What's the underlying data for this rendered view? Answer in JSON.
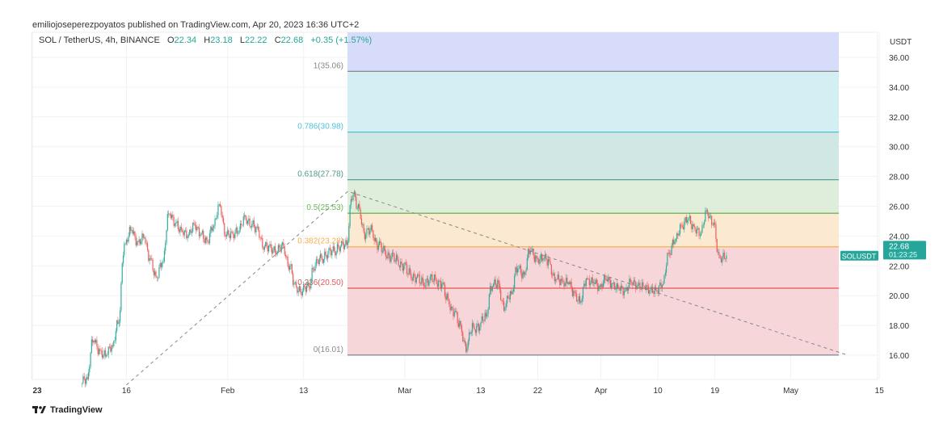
{
  "header": {
    "published": "emiliojoseperezpoyatos published on TradingView.com, Apr 20, 2023 16:36 UTC+2"
  },
  "legend": {
    "symbol": "SOL / TetherUS, 4h, BINANCE",
    "o_label": "O",
    "o": "22.34",
    "h_label": "H",
    "h": "23.18",
    "l_label": "L",
    "l": "22.22",
    "c_label": "C",
    "c": "22.68",
    "change": "+0.35 (+1.57%)"
  },
  "footer": {
    "brand": "TradingView",
    "logo_icon": "tradingview-logo-icon"
  },
  "chart_data": {
    "type": "candlestick",
    "symbol": "SOLUSDT",
    "interval": "4h",
    "currency_label": "USDT",
    "ylim": [
      14,
      38
    ],
    "y_ticks": [
      "16.00",
      "18.00",
      "20.00",
      "22.00",
      "24.00",
      "26.00",
      "28.00",
      "30.00",
      "32.00",
      "34.00",
      "36.00"
    ],
    "x_ticks": [
      {
        "label": "23",
        "date": "2023-01-01",
        "bold": true
      },
      {
        "label": "16",
        "date": "2023-01-16"
      },
      {
        "label": "Feb",
        "date": "2023-02-01"
      },
      {
        "label": "13",
        "date": "2023-02-13"
      },
      {
        "label": "Mar",
        "date": "2023-03-01"
      },
      {
        "label": "13",
        "date": "2023-03-13"
      },
      {
        "label": "22",
        "date": "2023-03-22"
      },
      {
        "label": "Apr",
        "date": "2023-04-01"
      },
      {
        "label": "10",
        "date": "2023-04-10"
      },
      {
        "label": "19",
        "date": "2023-04-19"
      },
      {
        "label": "May",
        "date": "2023-05-01"
      },
      {
        "label": "15",
        "date": "2023-05-15"
      }
    ],
    "last_price": {
      "symbol_label": "SOLUSDT",
      "price": "22.68",
      "countdown": "01:23:25",
      "color": "#26a69a"
    },
    "colors": {
      "up": "#26a69a",
      "down": "#ef5350"
    },
    "grid": true,
    "dates": [
      "2023-01-09",
      "2023-01-10",
      "2023-01-11",
      "2023-01-12",
      "2023-01-13",
      "2023-01-14",
      "2023-01-15",
      "2023-01-16",
      "2023-01-17",
      "2023-01-18",
      "2023-01-19",
      "2023-01-20",
      "2023-01-21",
      "2023-01-22",
      "2023-01-23",
      "2023-01-24",
      "2023-01-25",
      "2023-01-26",
      "2023-01-27",
      "2023-01-28",
      "2023-01-29",
      "2023-01-30",
      "2023-01-31",
      "2023-02-01",
      "2023-02-02",
      "2023-02-03",
      "2023-02-04",
      "2023-02-05",
      "2023-02-06",
      "2023-02-07",
      "2023-02-08",
      "2023-02-09",
      "2023-02-10",
      "2023-02-11",
      "2023-02-12",
      "2023-02-13",
      "2023-02-14",
      "2023-02-15",
      "2023-02-16",
      "2023-02-17",
      "2023-02-18",
      "2023-02-19",
      "2023-02-20",
      "2023-02-21",
      "2023-02-22",
      "2023-02-23",
      "2023-02-24",
      "2023-02-25",
      "2023-02-26",
      "2023-02-27",
      "2023-02-28",
      "2023-03-01",
      "2023-03-02",
      "2023-03-03",
      "2023-03-04",
      "2023-03-05",
      "2023-03-06",
      "2023-03-07",
      "2023-03-08",
      "2023-03-09",
      "2023-03-10",
      "2023-03-11",
      "2023-03-12",
      "2023-03-13",
      "2023-03-14",
      "2023-03-15",
      "2023-03-16",
      "2023-03-17",
      "2023-03-18",
      "2023-03-19",
      "2023-03-20",
      "2023-03-21",
      "2023-03-22",
      "2023-03-23",
      "2023-03-24",
      "2023-03-25",
      "2023-03-26",
      "2023-03-27",
      "2023-03-28",
      "2023-03-29",
      "2023-03-30",
      "2023-03-31",
      "2023-04-01",
      "2023-04-02",
      "2023-04-03",
      "2023-04-04",
      "2023-04-05",
      "2023-04-06",
      "2023-04-07",
      "2023-04-08",
      "2023-04-09",
      "2023-04-10",
      "2023-04-11",
      "2023-04-12",
      "2023-04-13",
      "2023-04-14",
      "2023-04-15",
      "2023-04-16",
      "2023-04-17",
      "2023-04-18",
      "2023-04-19",
      "2023-04-20"
    ],
    "close": [
      14.4,
      17.0,
      16.3,
      16.0,
      16.6,
      18.2,
      23.5,
      24.4,
      23.6,
      23.9,
      22.5,
      21.2,
      22.3,
      25.5,
      24.9,
      24.3,
      24.1,
      24.7,
      24.2,
      23.6,
      24.7,
      26.0,
      24.1,
      24.1,
      24.4,
      25.2,
      24.8,
      24.4,
      23.3,
      23.2,
      23.0,
      23.3,
      22.0,
      20.6,
      20.3,
      20.6,
      22.0,
      22.5,
      22.8,
      23.0,
      23.3,
      23.4,
      26.8,
      25.8,
      24.1,
      24.4,
      23.4,
      23.0,
      22.6,
      22.4,
      22.0,
      21.5,
      21.2,
      20.9,
      21.0,
      21.1,
      20.8,
      19.8,
      18.9,
      18.0,
      16.5,
      17.9,
      17.9,
      18.6,
      20.6,
      20.8,
      19.2,
      20.1,
      21.8,
      21.4,
      23.0,
      22.5,
      22.5,
      22.3,
      21.1,
      21.0,
      20.9,
      20.2,
      19.6,
      21.1,
      20.9,
      20.6,
      21.1,
      20.8,
      20.5,
      20.3,
      20.9,
      20.7,
      20.6,
      20.4,
      20.3,
      20.8,
      22.8,
      23.8,
      24.6,
      25.2,
      24.5,
      24.2,
      25.6,
      24.9,
      22.5,
      22.68
    ],
    "fibonacci": {
      "start_date": "2023-02-20",
      "end_date": "2023-05-10",
      "trend_points": [
        {
          "date": "2023-01-16",
          "price": 14.0
        },
        {
          "date": "2023-02-20",
          "price": 27.0
        },
        {
          "date": "2023-05-10",
          "price": 16.0
        }
      ],
      "levels": [
        {
          "label": "1(35.06)",
          "price": 35.06,
          "line": "#8a8a8a",
          "fill": "#e2e3e5",
          "text": "#888888"
        },
        {
          "label": "0.786(30.98)",
          "price": 30.98,
          "line": "#4ec0d8",
          "fill": "#d3eff4",
          "text": "#4ec0d8"
        },
        {
          "label": "0.618(27.78)",
          "price": 27.78,
          "line": "#5a9e90",
          "fill": "#d1e7e3",
          "text": "#4f9a8a"
        },
        {
          "label": "0.5(25.53)",
          "price": 25.53,
          "line": "#6cb85a",
          "fill": "#dfeedb",
          "text": "#6cb85a"
        },
        {
          "label": "0.382(23.28)",
          "price": 23.28,
          "line": "#f3b85e",
          "fill": "#fbe9d1",
          "text": "#f3b050"
        },
        {
          "label": "0.236(20.50)",
          "price": 20.5,
          "line": "#e05757",
          "fill": "#f6d6d9",
          "text": "#e05757"
        },
        {
          "label": "0(16.01)",
          "price": 16.01,
          "line": "#8a8a9a",
          "fill": "#f6d6d9",
          "text": "#888888"
        }
      ],
      "extension_fill": "#d6dcfa"
    }
  }
}
